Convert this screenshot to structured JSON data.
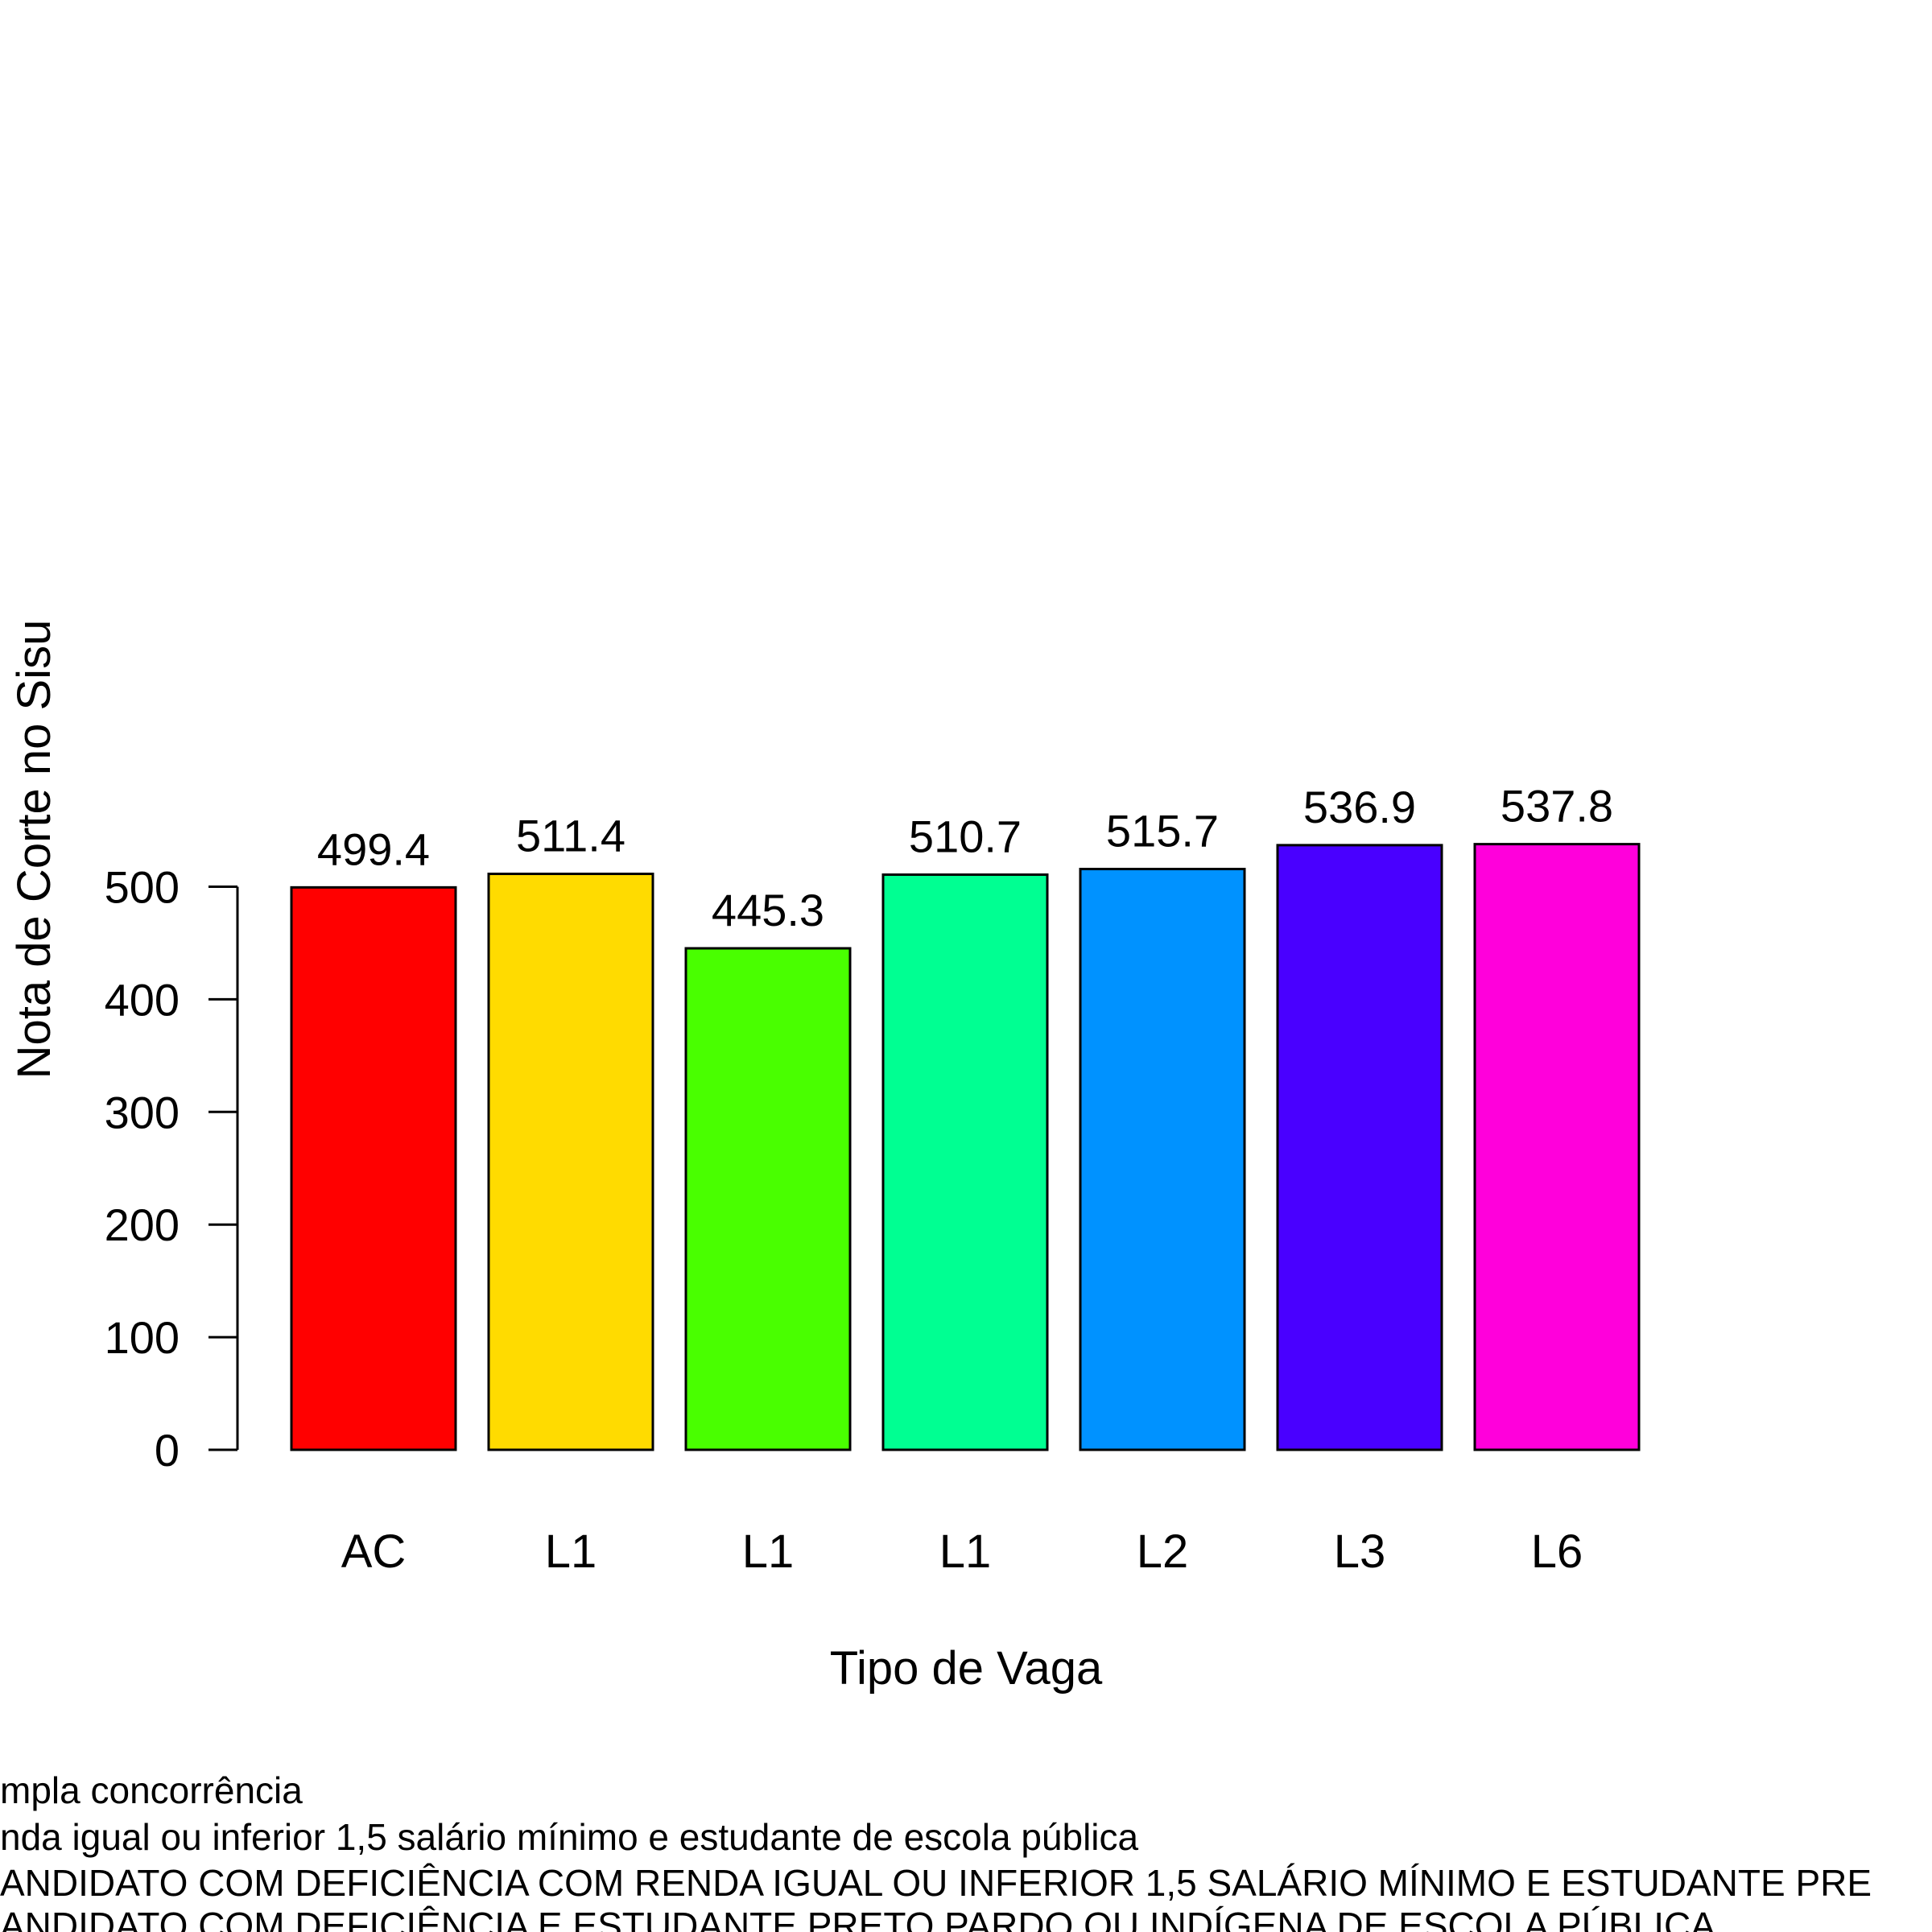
{
  "chart_data": {
    "type": "bar",
    "title": "",
    "xlabel": "Tipo de Vaga",
    "ylabel": "Nota de Corte no Sisu",
    "categories": [
      "AC",
      "L1",
      "L1",
      "L1",
      "L2",
      "L3",
      "L6"
    ],
    "values": [
      499.4,
      511.4,
      445.3,
      510.7,
      515.7,
      536.9,
      537.8
    ],
    "value_labels": [
      "499.4",
      "511.4",
      "445.3",
      "510.7",
      "515.7",
      "536.9",
      "537.8"
    ],
    "colors": [
      "#FF0000",
      "#FFDB00",
      "#49FF00",
      "#00FF92",
      "#0092FF",
      "#4900FF",
      "#FF00DB"
    ],
    "yticks": [
      0,
      100,
      200,
      300,
      400,
      500
    ],
    "ylim": [
      0,
      560
    ],
    "grid": false,
    "legend": "none",
    "footnotes": [
      "mpla concorrência",
      "nda igual ou inferior 1,5 salário mínimo e estudante de escola pública",
      "ANDIDATO COM DEFICIÊNCIA COM RENDA IGUAL OU INFERIOR 1,5 SALÁRIO MÍNIMO E ESTUDANTE PRE",
      "ANDIDATO COM DEFICIÊNCIA E ESTUDANTE PRETO PARDO OU INDÍGENA DE ESCOLA PÚBLICA"
    ]
  }
}
